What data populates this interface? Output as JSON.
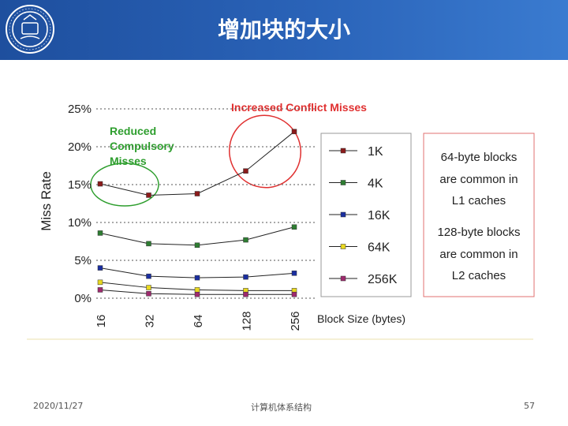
{
  "header": {
    "title": "增加块的大小"
  },
  "footer": {
    "date": "2020/11/27",
    "course": "计算机体系结构",
    "page": "57"
  },
  "colors": {
    "header_bg": "#2a63b8",
    "annotation_red": "#e03030",
    "annotation_green": "#2e9e2e"
  },
  "chart_data": {
    "type": "line",
    "xlabel": "Block Size (bytes)",
    "ylabel": "Miss Rate",
    "categories": [
      "16",
      "32",
      "64",
      "128",
      "256"
    ],
    "y_ticks": [
      "0%",
      "5%",
      "10%",
      "15%",
      "20%",
      "25%"
    ],
    "ylim": [
      0,
      25
    ],
    "grid": "horizontal dotted",
    "legend_position": "right",
    "series": [
      {
        "name": "1K",
        "color": "#8b1a1a",
        "values": [
          15.1,
          13.6,
          13.8,
          16.8,
          22.0
        ]
      },
      {
        "name": "4K",
        "color": "#2e7d32",
        "values": [
          8.6,
          7.2,
          7.0,
          7.7,
          9.4
        ]
      },
      {
        "name": "16K",
        "color": "#1a2ea0",
        "values": [
          4.0,
          2.9,
          2.7,
          2.8,
          3.3
        ]
      },
      {
        "name": "64K",
        "color": "#e8d820",
        "values": [
          2.1,
          1.4,
          1.1,
          1.0,
          1.0
        ]
      },
      {
        "name": "256K",
        "color": "#9e2a6e",
        "values": [
          1.1,
          0.6,
          0.5,
          0.5,
          0.5
        ]
      }
    ],
    "annotations": {
      "conflict": "Increased Conflict Misses",
      "compulsory": [
        "Reduced",
        "Compulsory",
        "Misses"
      ]
    },
    "note_box": [
      "64-byte blocks",
      "are common in",
      "L1 caches",
      "128-byte blocks",
      "are common in",
      "L2 caches"
    ]
  }
}
